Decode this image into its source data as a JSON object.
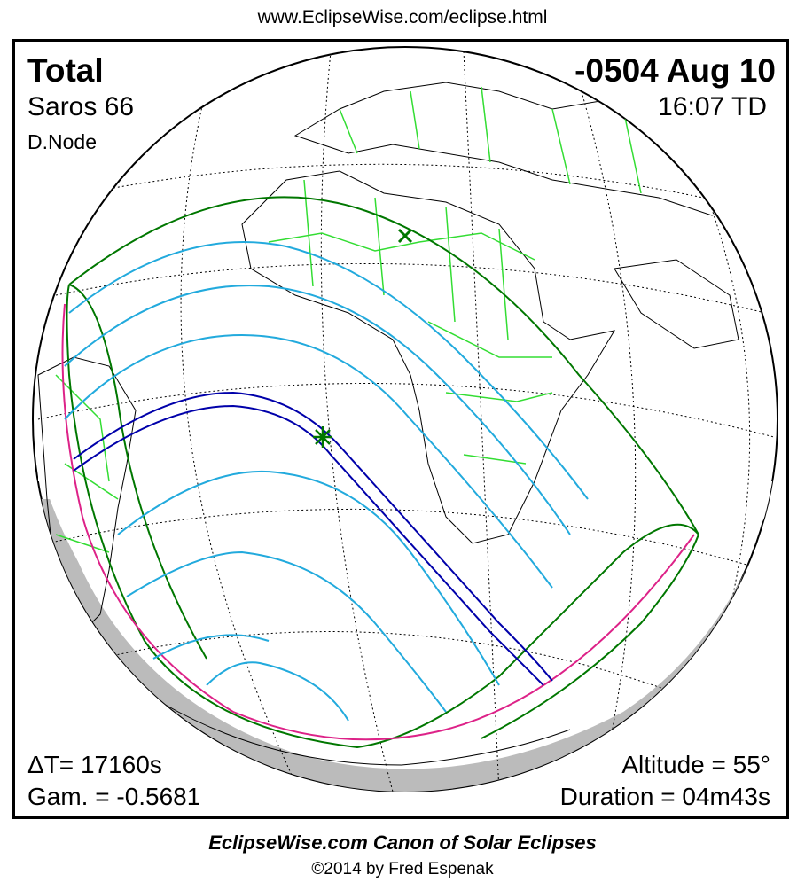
{
  "header": {
    "url": "www.EclipseWise.com/eclipse.html"
  },
  "eclipse": {
    "type": "Total",
    "date": "-0504 Aug 10",
    "saros": "Saros  66",
    "time": "16:07 TD",
    "node": "D.Node",
    "delta_t": "ΔT=  17160s",
    "gamma": "Gam. = -0.5681",
    "altitude": "Altitude = 55°",
    "duration": "Duration = 04m43s"
  },
  "footer": {
    "title": "EclipseWise.com Canon of Solar Eclipses",
    "copyright": "©2014 by Fred Espenak"
  },
  "colors": {
    "coastline": "#000000",
    "borders": "#33dd33",
    "path_of_totality": "#0000aa",
    "penumbral_limits": "#007700",
    "eclipse_limits_in_umbra": "#22aadd",
    "sunrise_sunset_curve": "#dd2288",
    "night_side": "#bbbbbb",
    "grid": "#000000"
  },
  "icons": {
    "greatest_eclipse": "star-marker-icon",
    "subsolar_point": "x-marker-icon"
  }
}
